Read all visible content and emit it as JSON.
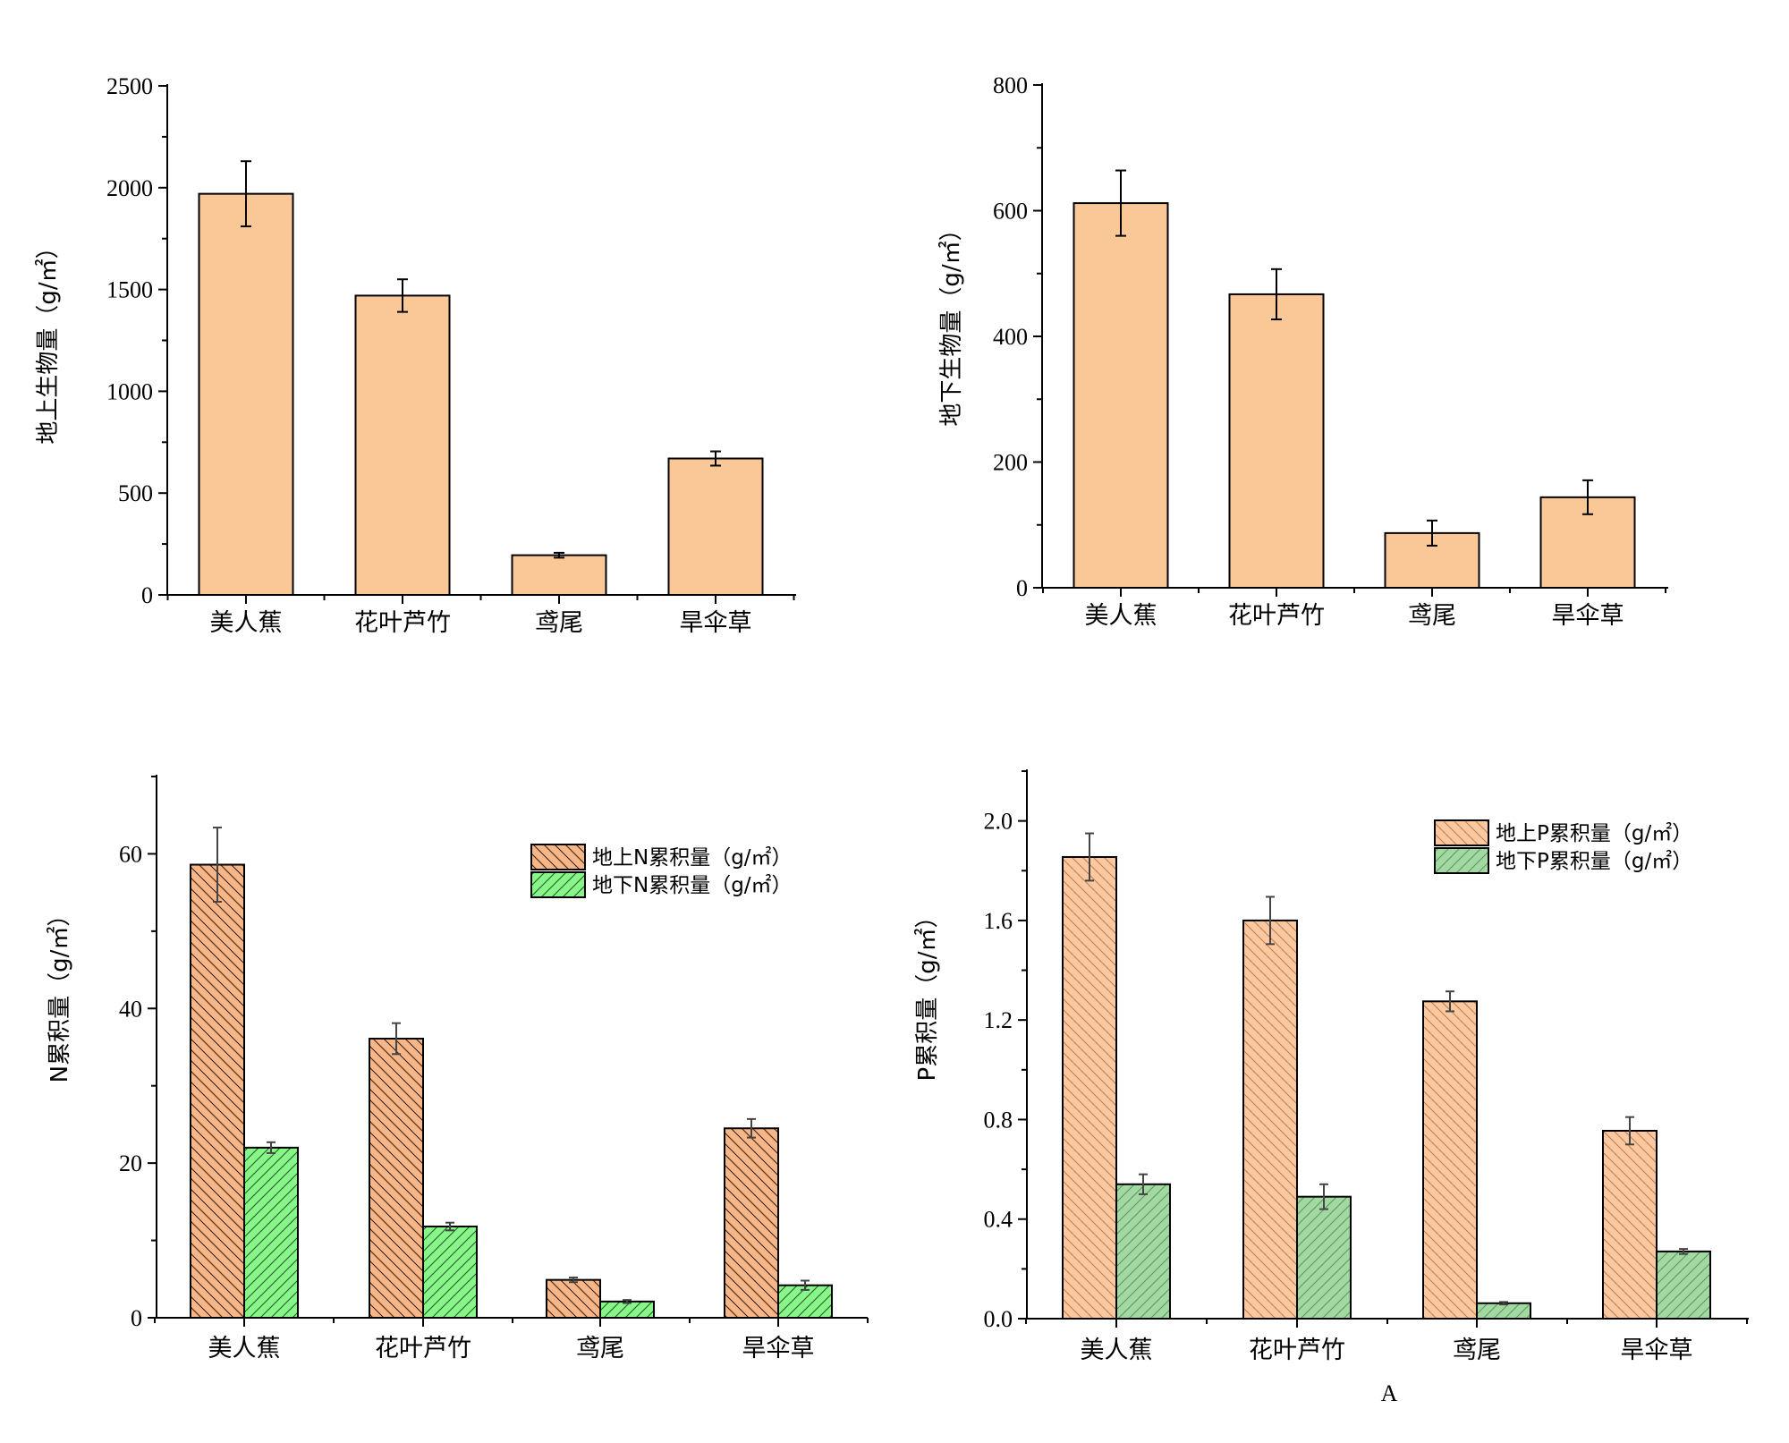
{
  "chart_data": [
    {
      "id": "c1",
      "type": "bar",
      "categories": [
        "美人蕉",
        "花叶芦竹",
        "鸢尾",
        "旱伞草"
      ],
      "series": [
        {
          "name": "地上生物量",
          "values": [
            1970,
            1470,
            195,
            670
          ],
          "errors": [
            160,
            80,
            12,
            35
          ],
          "color": "#fac796",
          "pattern": "none"
        }
      ],
      "ylabel": "地上生物量（g/㎡）",
      "ylim": [
        0,
        2500
      ],
      "yticks": [
        "0",
        "500",
        "1000",
        "1500",
        "2000",
        "2500"
      ],
      "legend": []
    },
    {
      "id": "c2",
      "type": "bar",
      "categories": [
        "美人蕉",
        "花叶芦竹",
        "鸢尾",
        "旱伞草"
      ],
      "series": [
        {
          "name": "地下生物量",
          "values": [
            612,
            467,
            87,
            144
          ],
          "errors": [
            52,
            40,
            20,
            27
          ],
          "color": "#fac796",
          "pattern": "none"
        }
      ],
      "ylabel": "地下生物量（g/㎡）",
      "ylim": [
        0,
        800
      ],
      "yticks": [
        "0",
        "200",
        "400",
        "600",
        "800"
      ],
      "legend": []
    },
    {
      "id": "c3",
      "type": "bar",
      "categories": [
        "美人蕉",
        "花叶芦竹",
        "鸢尾",
        "旱伞草"
      ],
      "series": [
        {
          "name": "地上N累积量（g/㎡）",
          "values": [
            58.6,
            36.1,
            4.9,
            24.5
          ],
          "errors": [
            4.8,
            2.0,
            0.3,
            1.2
          ],
          "color": "#f7b688",
          "pattern": "hatch-back"
        },
        {
          "name": "地下N累积量（g/㎡）",
          "values": [
            22.0,
            11.8,
            2.1,
            4.2
          ],
          "errors": [
            0.7,
            0.5,
            0.2,
            0.6
          ],
          "color": "#88f78a",
          "pattern": "hatch-fwd"
        }
      ],
      "ylabel": "N累积量（g/㎡）",
      "ylim": [
        0,
        70
      ],
      "yticks": [
        "0",
        "20",
        "40",
        "60"
      ],
      "legend": [
        "地上N累积量（g/㎡）",
        "地下N累积量（g/㎡）"
      ]
    },
    {
      "id": "c4",
      "type": "bar",
      "categories": [
        "美人蕉",
        "花叶芦竹",
        "鸢尾",
        "旱伞草"
      ],
      "series": [
        {
          "name": "地上P累积量（g/㎡）",
          "values": [
            1.855,
            1.6,
            1.275,
            0.755
          ],
          "errors": [
            0.095,
            0.095,
            0.04,
            0.055
          ],
          "color": "#fac9a1",
          "pattern": "hatch-back"
        },
        {
          "name": "地下P累积量（g/㎡）",
          "values": [
            0.54,
            0.49,
            0.062,
            0.27
          ],
          "errors": [
            0.04,
            0.05,
            0.005,
            0.01
          ],
          "color": "#a2d8a2",
          "pattern": "hatch-fwd"
        }
      ],
      "ylabel": "P累积量（g/㎡）",
      "ylim": [
        0,
        2.2
      ],
      "yticks": [
        "0.0",
        "0.4",
        "0.8",
        "1.2",
        "1.6",
        "2.0"
      ],
      "legend": [
        "地上P累积量（g/㎡）",
        "地下P累积量（g/㎡）"
      ],
      "xlabel": "A"
    }
  ]
}
